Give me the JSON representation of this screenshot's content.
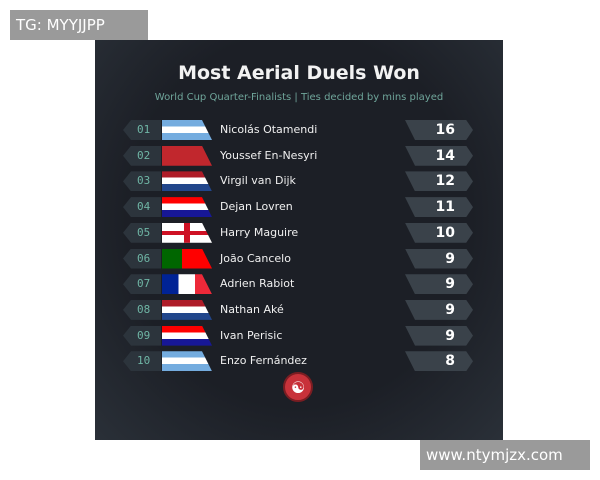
{
  "watermarks": {
    "top_left": "TG: MYYJJPP",
    "bottom_right": "www.ntymjzx.com"
  },
  "title": "Most Aerial Duels Won",
  "subtitle": "World Cup Quarter-Finalists | Ties decided by mins played",
  "rows": [
    {
      "rank": "01",
      "flag": "argentina",
      "name": "Nicolás Otamendi",
      "value": "16"
    },
    {
      "rank": "02",
      "flag": "morocco",
      "name": "Youssef En-Nesyri",
      "value": "14"
    },
    {
      "rank": "03",
      "flag": "netherlands",
      "name": "Virgil van Dijk",
      "value": "12"
    },
    {
      "rank": "04",
      "flag": "croatia",
      "name": "Dejan Lovren",
      "value": "11"
    },
    {
      "rank": "05",
      "flag": "england",
      "name": "Harry Maguire",
      "value": "10"
    },
    {
      "rank": "06",
      "flag": "portugal",
      "name": "João Cancelo",
      "value": "9"
    },
    {
      "rank": "07",
      "flag": "france",
      "name": "Adrien Rabiot",
      "value": "9"
    },
    {
      "rank": "08",
      "flag": "netherlands",
      "name": "Nathan Aké",
      "value": "9"
    },
    {
      "rank": "09",
      "flag": "croatia",
      "name": "Ivan Perisic",
      "value": "9"
    },
    {
      "rank": "10",
      "flag": "argentina",
      "name": "Enzo Fernández",
      "value": "8"
    }
  ],
  "logo_icon": "brand-logo-icon"
}
